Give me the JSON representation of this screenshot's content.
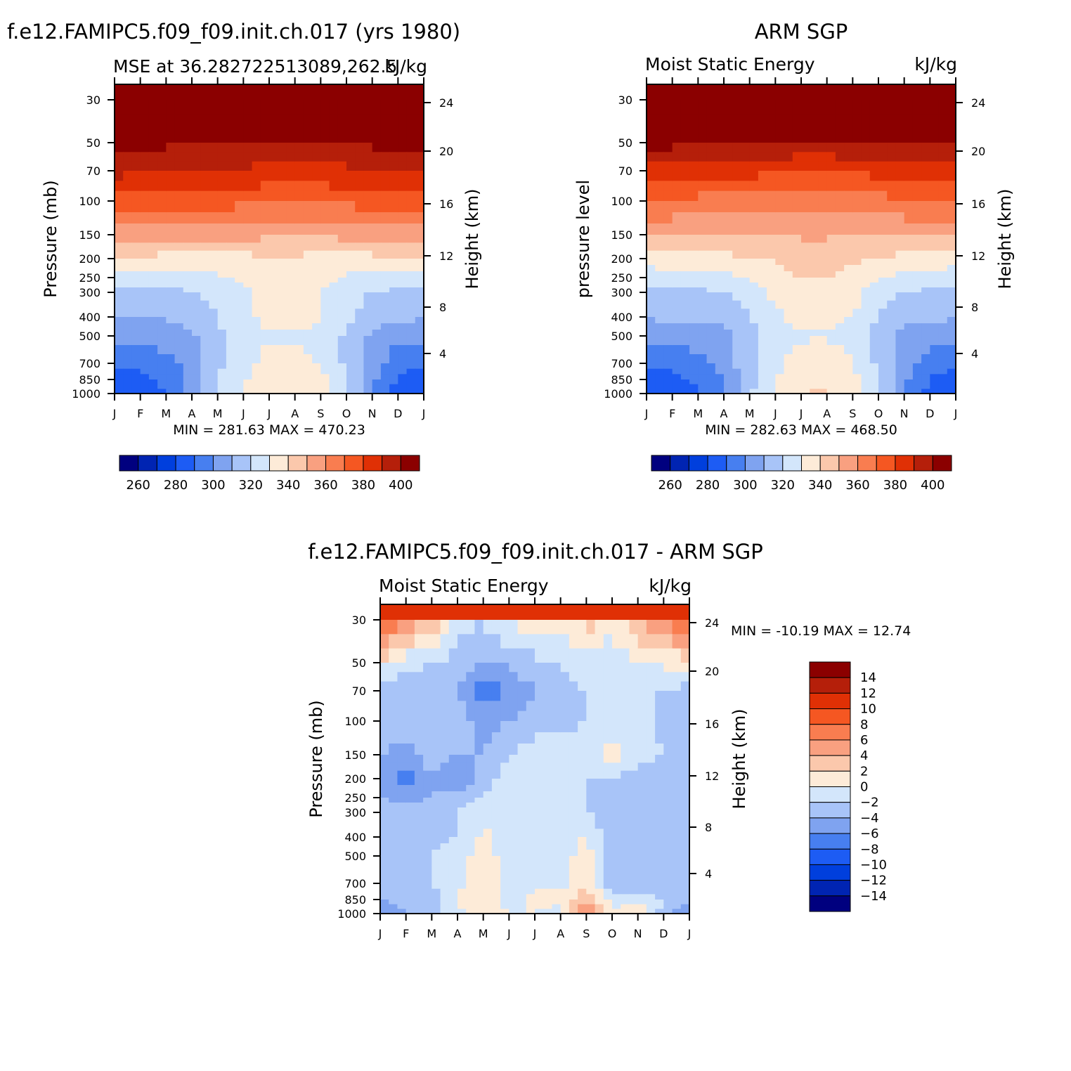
{
  "colors": {
    "mse": [
      "#00007f",
      "#0024b2",
      "#003fdd",
      "#1d5cf4",
      "#477ff0",
      "#7fa3f0",
      "#a8c4f8",
      "#d3e6fb",
      "#fdebd8",
      "#fbc8ac",
      "#f9a080",
      "#f97d50",
      "#f55722",
      "#e03005",
      "#b51f0a",
      "#8b0000"
    ],
    "diff": [
      "#00007f",
      "#0024b2",
      "#003fdd",
      "#1d5cf4",
      "#477ff0",
      "#7fa3f0",
      "#a8c4f8",
      "#d3e6fb",
      "#fdebd8",
      "#fbc8ac",
      "#f9a080",
      "#f97d50",
      "#f55722",
      "#e03005",
      "#b51f0a",
      "#8b0000"
    ]
  },
  "chart_data": [
    {
      "type": "heatmap",
      "title": "f.e12.FAMIPC5.f09_f09.init.ch.017 (yrs 1980)",
      "subtitle_left": "MSE at 36.282722513089,262.5",
      "subtitle_right": "kJ/kg",
      "ylabel": "Pressure (mb)",
      "ylabel_right": "Height (km)",
      "x_ticks": [
        "J",
        "F",
        "M",
        "A",
        "M",
        "J",
        "J",
        "A",
        "S",
        "O",
        "N",
        "D",
        "J"
      ],
      "y_ticks": [
        "30",
        "50",
        "70",
        "100",
        "150",
        "200",
        "250",
        "300",
        "400",
        "500",
        "700",
        "850",
        "1000"
      ],
      "y_ticks_right": [
        "24",
        "20",
        "16",
        "12",
        "8",
        "4"
      ],
      "stats": "MIN = 281.63 MAX = 470.23",
      "colorbar": {
        "orientation": "horizontal",
        "labels": [
          "260",
          "280",
          "300",
          "320",
          "340",
          "360",
          "380",
          "400"
        ]
      },
      "min": 281.63,
      "max": 470.23,
      "levels_start": 250,
      "levels_step": 10,
      "rows": [
        [
          470,
          470,
          470,
          470,
          470,
          470,
          470,
          470,
          470,
          470,
          470,
          470,
          470
        ],
        [
          405,
          403,
          402,
          402,
          402,
          401,
          400,
          400,
          400,
          400,
          402,
          403,
          405
        ],
        [
          393,
          392,
          390,
          389,
          389,
          388,
          387,
          387,
          387,
          388,
          389,
          391,
          393
        ],
        [
          376,
          376,
          374,
          374,
          374,
          373,
          372,
          372,
          372,
          373,
          374,
          375,
          376
        ],
        [
          356,
          356,
          355,
          355,
          354,
          353,
          352,
          352,
          352,
          353,
          354,
          355,
          356
        ],
        [
          337,
          338,
          336,
          336,
          337,
          337,
          338,
          338,
          337,
          336,
          337,
          338,
          337
        ],
        [
          326,
          327,
          326,
          326,
          329,
          332,
          335,
          335,
          333,
          329,
          327,
          327,
          326
        ],
        [
          318,
          318,
          318,
          319,
          323,
          328,
          333,
          333,
          330,
          324,
          320,
          318,
          318
        ],
        [
          311,
          311,
          311,
          313,
          320,
          327,
          334,
          334,
          331,
          322,
          315,
          313,
          311
        ],
        [
          303,
          303,
          304,
          308,
          318,
          325,
          329,
          329,
          326,
          318,
          308,
          303,
          303
        ],
        [
          291,
          293,
          297,
          304,
          318,
          326,
          333,
          334,
          330,
          318,
          304,
          294,
          291
        ],
        [
          284,
          286,
          292,
          302,
          319,
          329,
          337,
          337,
          333,
          319,
          302,
          289,
          284
        ],
        [
          282,
          285,
          290,
          302,
          320,
          331,
          339,
          339,
          333,
          320,
          301,
          286,
          282
        ]
      ]
    },
    {
      "type": "heatmap",
      "title": "ARM SGP",
      "subtitle_left": "Moist Static Energy",
      "subtitle_right": "kJ/kg",
      "ylabel": "pressure level",
      "ylabel_right": "Height (km)",
      "x_ticks": [
        "J",
        "F",
        "M",
        "A",
        "M",
        "J",
        "J",
        "A",
        "S",
        "O",
        "N",
        "D",
        "J"
      ],
      "y_ticks": [
        "30",
        "50",
        "70",
        "100",
        "150",
        "200",
        "250",
        "300",
        "400",
        "500",
        "700",
        "850",
        "1000"
      ],
      "y_ticks_right": [
        "24",
        "20",
        "16",
        "12",
        "8",
        "4"
      ],
      "stats": "MIN = 282.63 MAX = 468.50",
      "colorbar": {
        "orientation": "horizontal",
        "labels": [
          "260",
          "280",
          "300",
          "320",
          "340",
          "360",
          "380",
          "400"
        ]
      },
      "min": 282.63,
      "max": 468.5,
      "levels_start": 250,
      "levels_step": 10,
      "rows": [
        [
          468,
          468,
          468,
          468,
          468,
          468,
          468,
          468,
          468,
          468,
          468,
          468,
          468
        ],
        [
          403,
          403,
          402,
          401,
          400,
          399,
          398,
          398,
          399,
          400,
          401,
          402,
          403
        ],
        [
          385,
          385,
          384,
          383,
          383,
          382,
          381,
          381,
          382,
          383,
          384,
          385,
          385
        ],
        [
          368,
          368,
          367,
          367,
          367,
          366,
          365,
          365,
          366,
          367,
          368,
          368,
          368
        ],
        [
          352,
          352,
          352,
          352,
          351,
          351,
          351,
          351,
          351,
          351,
          352,
          352,
          352
        ],
        [
          335,
          336,
          336,
          337,
          339,
          341,
          345,
          345,
          342,
          339,
          337,
          336,
          335
        ],
        [
          324,
          325,
          326,
          327,
          331,
          336,
          340,
          340,
          336,
          331,
          327,
          325,
          324
        ],
        [
          317,
          318,
          318,
          320,
          326,
          332,
          337,
          337,
          333,
          325,
          320,
          318,
          317
        ],
        [
          311,
          312,
          312,
          313,
          320,
          328,
          334,
          334,
          330,
          320,
          313,
          312,
          311
        ],
        [
          303,
          303,
          304,
          307,
          316,
          326,
          329,
          329,
          326,
          316,
          307,
          303,
          303
        ],
        [
          291,
          293,
          297,
          304,
          317,
          327,
          334,
          336,
          331,
          318,
          305,
          295,
          291
        ],
        [
          285,
          287,
          291,
          301,
          317,
          330,
          338,
          339,
          333,
          320,
          302,
          289,
          285
        ],
        [
          283,
          286,
          290,
          301,
          318,
          331,
          340,
          341,
          335,
          321,
          301,
          287,
          283
        ]
      ]
    },
    {
      "type": "heatmap",
      "title": "f.e12.FAMIPC5.f09_f09.init.ch.017 - ARM SGP",
      "subtitle_left": "Moist Static Energy",
      "subtitle_right": "kJ/kg",
      "ylabel": "Pressure (mb)",
      "ylabel_right": "Height (km)",
      "x_ticks": [
        "J",
        "F",
        "M",
        "A",
        "M",
        "J",
        "J",
        "A",
        "S",
        "O",
        "N",
        "D",
        "J"
      ],
      "y_ticks": [
        "30",
        "50",
        "70",
        "100",
        "150",
        "200",
        "250",
        "300",
        "400",
        "500",
        "700",
        "850",
        "1000"
      ],
      "y_ticks_right": [
        "24",
        "20",
        "16",
        "12",
        "8",
        "4"
      ],
      "stats": "MIN = -10.19 MAX = 12.74",
      "colorbar": {
        "orientation": "vertical",
        "labels": [
          "14",
          "12",
          "10",
          "8",
          "6",
          "4",
          "2",
          "0",
          "-2",
          "-4",
          "-6",
          "-8",
          "-10",
          "-12",
          "-14"
        ]
      },
      "min": -10.19,
      "max": 12.74,
      "levels_start": -16,
      "levels_step": 2,
      "rows": [
        [
          10,
          6,
          4,
          -1,
          -2,
          0.5,
          1,
          0.5,
          3,
          1,
          4,
          6,
          10
        ],
        [
          1,
          -1.5,
          -2,
          -3,
          -4,
          -3.5,
          -2.5,
          -2,
          -1,
          -1.5,
          -0.5,
          0.5,
          1
        ],
        [
          -3,
          -3,
          -3,
          -4,
          -7,
          -6,
          -4,
          -3,
          -2,
          -2,
          -2,
          -2,
          -3
        ],
        [
          -3,
          -3,
          -2,
          -3,
          -5,
          -4,
          -3,
          -3,
          -2,
          -1,
          -1,
          -3,
          -3
        ],
        [
          -4,
          -5,
          -3,
          -4,
          -4,
          -2,
          -1,
          -1,
          -1,
          1,
          -1,
          -2,
          -3
        ],
        [
          -4,
          -7,
          -4,
          -6,
          -3,
          -1,
          -1,
          -1,
          -2,
          -2,
          -3,
          -3,
          -4
        ],
        [
          -4,
          -5,
          -4,
          -3,
          -2,
          -1,
          -1,
          -2,
          -2,
          -3,
          -3,
          -4,
          -4
        ],
        [
          -3,
          -3,
          -3,
          -2,
          -1,
          -1,
          -1,
          -1,
          -2,
          -3,
          -3,
          -4,
          -3
        ],
        [
          -3,
          -3,
          -3,
          -2,
          0.5,
          -1,
          -1,
          -1,
          0.5,
          -4,
          -3,
          -4,
          -3
        ],
        [
          -3,
          -3,
          -2,
          -1,
          1,
          -1,
          -1,
          -1,
          1,
          -4,
          -3,
          -4,
          -3
        ],
        [
          -3,
          -3,
          -2,
          -1,
          1,
          -1,
          -0.5,
          -0.5,
          1,
          -4,
          -3,
          -4,
          -3
        ],
        [
          -4,
          -3,
          -3,
          0.5,
          2,
          -1,
          0.5,
          0.5,
          4,
          -1,
          -1,
          -2,
          -4
        ],
        [
          -6,
          -4,
          -3,
          -1,
          1,
          0,
          0,
          -1,
          6,
          0,
          2,
          -3,
          -6
        ]
      ]
    }
  ]
}
